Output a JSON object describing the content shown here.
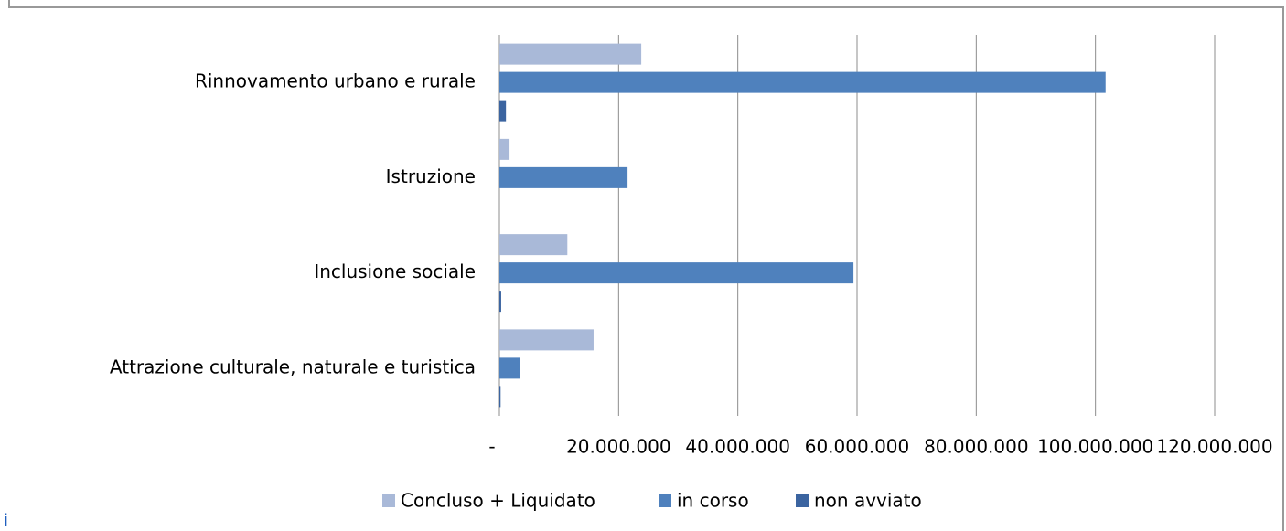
{
  "chart_data": {
    "type": "barh",
    "categories": [
      "Rinnovamento urbano  e rurale",
      "Istruzione",
      "Inclusione sociale",
      "Attrazione culturale, naturale e turistica"
    ],
    "series": [
      {
        "name": "Concluso + Liquidato",
        "color": "#a9b9d8",
        "values": [
          23800000,
          1700000,
          11400000,
          15800000
        ]
      },
      {
        "name": "in corso",
        "color": "#4f81bd",
        "values": [
          101700000,
          21500000,
          59400000,
          3500000
        ]
      },
      {
        "name": "non avviato",
        "color": "#3b64a0",
        "values": [
          1100000,
          0,
          300000,
          200000
        ]
      }
    ],
    "xlim": [
      0,
      120000000
    ],
    "xticks": [
      {
        "value": 0,
        "label": "-"
      },
      {
        "value": 20000000,
        "label": "20.000.000"
      },
      {
        "value": 40000000,
        "label": "40.000.000"
      },
      {
        "value": 60000000,
        "label": "60.000.000"
      },
      {
        "value": 80000000,
        "label": "80.000.000"
      },
      {
        "value": 100000000,
        "label": "100.000.000"
      },
      {
        "value": 120000000,
        "label": "120.000.000"
      }
    ],
    "grid": true,
    "legend": "bottom"
  },
  "corner_text": "i"
}
